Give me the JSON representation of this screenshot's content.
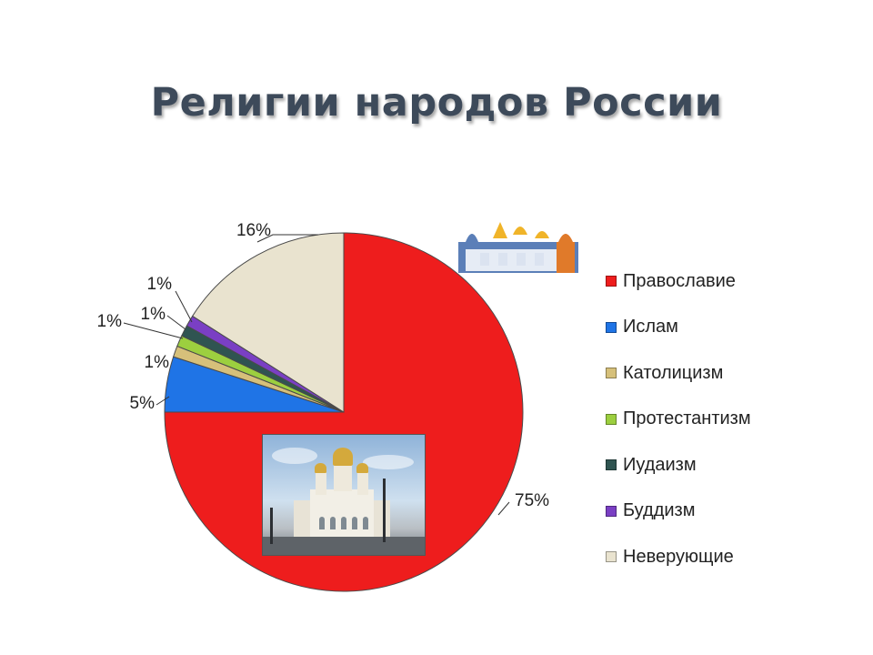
{
  "title": "Религии народов России",
  "chart_data": {
    "type": "pie",
    "title": "Религии народов России",
    "legend_position": "right",
    "slices": [
      {
        "name": "Православие",
        "value": 75,
        "label": "75%",
        "color": "#ee1d1d"
      },
      {
        "name": "Ислам",
        "value": 5,
        "label": "5%",
        "color": "#1f74e6"
      },
      {
        "name": "Католицизм",
        "value": 1,
        "label": "1%",
        "color": "#d6c07a"
      },
      {
        "name": "Протестантизм",
        "value": 1,
        "label": "1%",
        "color": "#9ccf3f"
      },
      {
        "name": "Иудаизм",
        "value": 1,
        "label": "1%",
        "color": "#2f5451"
      },
      {
        "name": "Буддизм",
        "value": 1,
        "label": "1%",
        "color": "#7a3fc4"
      },
      {
        "name": "Неверующие",
        "value": 16,
        "label": "16%",
        "color": "#e9e3cf"
      }
    ]
  },
  "legend": {
    "items": [
      {
        "label": "Православие",
        "color": "#ee1d1d"
      },
      {
        "label": "Ислам",
        "color": "#1f74e6"
      },
      {
        "label": "Католицизм",
        "color": "#d6c07a"
      },
      {
        "label": "Протестантизм",
        "color": "#9ccf3f"
      },
      {
        "label": "Иудаизм",
        "color": "#2f5451"
      },
      {
        "label": "Буддизм",
        "color": "#7a3fc4"
      },
      {
        "label": "Неверующие",
        "color": "#e9e3cf"
      }
    ]
  },
  "decor": {
    "photo_icon": "cathedral-photo",
    "kremlin_icon": "kremlin-towers-icon"
  }
}
